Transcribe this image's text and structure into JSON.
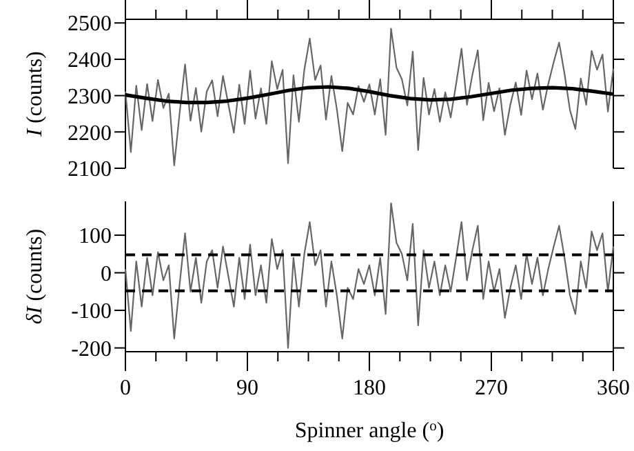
{
  "chart_data": [
    {
      "type": "line",
      "ylabel": "I (counts)",
      "xlim": [
        0,
        360
      ],
      "ylim": [
        2100,
        2510
      ],
      "tick_labels": "y",
      "grid": false,
      "xticks": [
        0,
        {
          "value": 22.5,
          "label": null
        },
        {
          "value": 45,
          "label": null
        },
        {
          "value": 67.5,
          "label": null
        },
        90,
        {
          "value": 112.5,
          "label": null
        },
        {
          "value": 135,
          "label": null
        },
        {
          "value": 157.5,
          "label": null
        },
        180,
        {
          "value": 202.5,
          "label": null
        },
        {
          "value": 225,
          "label": null
        },
        {
          "value": 247.5,
          "label": null
        },
        270,
        {
          "value": 292.5,
          "label": null
        },
        {
          "value": 315,
          "label": null
        },
        {
          "value": 337.5,
          "label": null
        },
        360
      ],
      "yticks": [
        2100,
        2200,
        2300,
        2400,
        2500
      ],
      "x": [
        0,
        4,
        8,
        12,
        16,
        20,
        24,
        28,
        32,
        36,
        40,
        44,
        48,
        52,
        56,
        60,
        64,
        68,
        72,
        76,
        80,
        84,
        88,
        92,
        96,
        100,
        104,
        108,
        112,
        116,
        120,
        124,
        128,
        132,
        136,
        140,
        144,
        148,
        152,
        156,
        160,
        164,
        168,
        172,
        176,
        180,
        184,
        188,
        192,
        196,
        200,
        204,
        208,
        212,
        216,
        220,
        224,
        228,
        232,
        236,
        240,
        244,
        248,
        252,
        256,
        260,
        264,
        268,
        272,
        276,
        280,
        284,
        288,
        292,
        296,
        300,
        304,
        308,
        312,
        316,
        320,
        324,
        328,
        332,
        336,
        340,
        344,
        348,
        352,
        356,
        360
      ],
      "series": [
        {
          "color": "#666666",
          "values": [
            2312,
            2145,
            2327,
            2205,
            2332,
            2230,
            2343,
            2266,
            2305,
            2108,
            2252,
            2386,
            2231,
            2321,
            2201,
            2311,
            2342,
            2243,
            2354,
            2275,
            2198,
            2330,
            2222,
            2369,
            2237,
            2320,
            2222,
            2395,
            2318,
            2371,
            2114,
            2356,
            2228,
            2371,
            2457,
            2343,
            2383,
            2234,
            2354,
            2263,
            2147,
            2280,
            2248,
            2326,
            2283,
            2331,
            2248,
            2345,
            2192,
            2484,
            2377,
            2345,
            2273,
            2421,
            2150,
            2349,
            2248,
            2318,
            2228,
            2309,
            2240,
            2332,
            2429,
            2275,
            2357,
            2425,
            2232,
            2335,
            2257,
            2320,
            2192,
            2275,
            2336,
            2247,
            2369,
            2290,
            2361,
            2261,
            2332,
            2392,
            2446,
            2360,
            2260,
            2208,
            2347,
            2275,
            2423,
            2371,
            2413,
            2256,
            2374
          ]
        },
        {
          "color": "#000000",
          "x": [
            0,
            15,
            30,
            45,
            60,
            75,
            90,
            105,
            120,
            135,
            150,
            165,
            180,
            195,
            210,
            225,
            240,
            255,
            270,
            285,
            300,
            315,
            330,
            345,
            360
          ],
          "values": [
            2302,
            2293,
            2285,
            2281,
            2281,
            2285,
            2293,
            2303,
            2314,
            2322,
            2324,
            2320,
            2311,
            2300,
            2292,
            2288,
            2290,
            2297,
            2306,
            2315,
            2320,
            2322,
            2319,
            2312,
            2304
          ]
        }
      ]
    },
    {
      "type": "line",
      "ylabel": "δI (counts)",
      "xlabel": "Spinner angle ($^{o}$)",
      "xlim": [
        0,
        360
      ],
      "ylim": [
        -210,
        190
      ],
      "grid": false,
      "xticks": [
        0,
        {
          "value": 22.5,
          "label": null
        },
        {
          "value": 45,
          "label": null
        },
        {
          "value": 67.5,
          "label": null
        },
        90,
        {
          "value": 112.5,
          "label": null
        },
        {
          "value": 135,
          "label": null
        },
        {
          "value": 157.5,
          "label": null
        },
        180,
        {
          "value": 202.5,
          "label": null
        },
        {
          "value": 225,
          "label": null
        },
        {
          "value": 247.5,
          "label": null
        },
        270,
        {
          "value": 292.5,
          "label": null
        },
        {
          "value": 315,
          "label": null
        },
        {
          "value": 337.5,
          "label": null
        },
        360
      ],
      "yticks": [
        -200,
        -100,
        0,
        100
      ],
      "ref_lines": [
        {
          "axis": "y",
          "value": 48,
          "color": "#000000",
          "line_style": "dashed"
        },
        {
          "axis": "y",
          "value": -48,
          "color": "#000000",
          "line_style": "dashed"
        }
      ],
      "x": [
        0,
        4,
        8,
        12,
        16,
        20,
        24,
        28,
        32,
        36,
        40,
        44,
        48,
        52,
        56,
        60,
        64,
        68,
        72,
        76,
        80,
        84,
        88,
        92,
        96,
        100,
        104,
        108,
        112,
        116,
        120,
        124,
        128,
        132,
        136,
        140,
        144,
        148,
        152,
        156,
        160,
        164,
        168,
        172,
        176,
        180,
        184,
        188,
        192,
        196,
        200,
        204,
        208,
        212,
        216,
        220,
        224,
        228,
        232,
        236,
        240,
        244,
        248,
        252,
        256,
        260,
        264,
        268,
        272,
        276,
        280,
        284,
        288,
        292,
        296,
        300,
        304,
        308,
        312,
        316,
        320,
        324,
        328,
        332,
        336,
        340,
        344,
        348,
        352,
        356,
        360
      ],
      "series": [
        {
          "color": "#666666",
          "values": [
            10,
            -155,
            30,
            -90,
            40,
            -60,
            55,
            -20,
            20,
            -175,
            -30,
            105,
            -50,
            40,
            -80,
            30,
            60,
            -40,
            70,
            -10,
            -90,
            40,
            -70,
            75,
            -60,
            20,
            -80,
            90,
            10,
            60,
            -200,
            40,
            -90,
            50,
            135,
            20,
            60,
            -90,
            30,
            -60,
            -175,
            -40,
            -70,
            10,
            -30,
            20,
            -60,
            40,
            -110,
            185,
            80,
            50,
            -20,
            130,
            -140,
            60,
            -40,
            30,
            -60,
            20,
            -50,
            40,
            135,
            -20,
            60,
            125,
            -70,
            30,
            -50,
            10,
            -120,
            -40,
            20,
            -70,
            50,
            -30,
            40,
            -60,
            10,
            70,
            125,
            40,
            -60,
            -110,
            30,
            -40,
            110,
            60,
            105,
            -50,
            70
          ]
        }
      ]
    }
  ]
}
